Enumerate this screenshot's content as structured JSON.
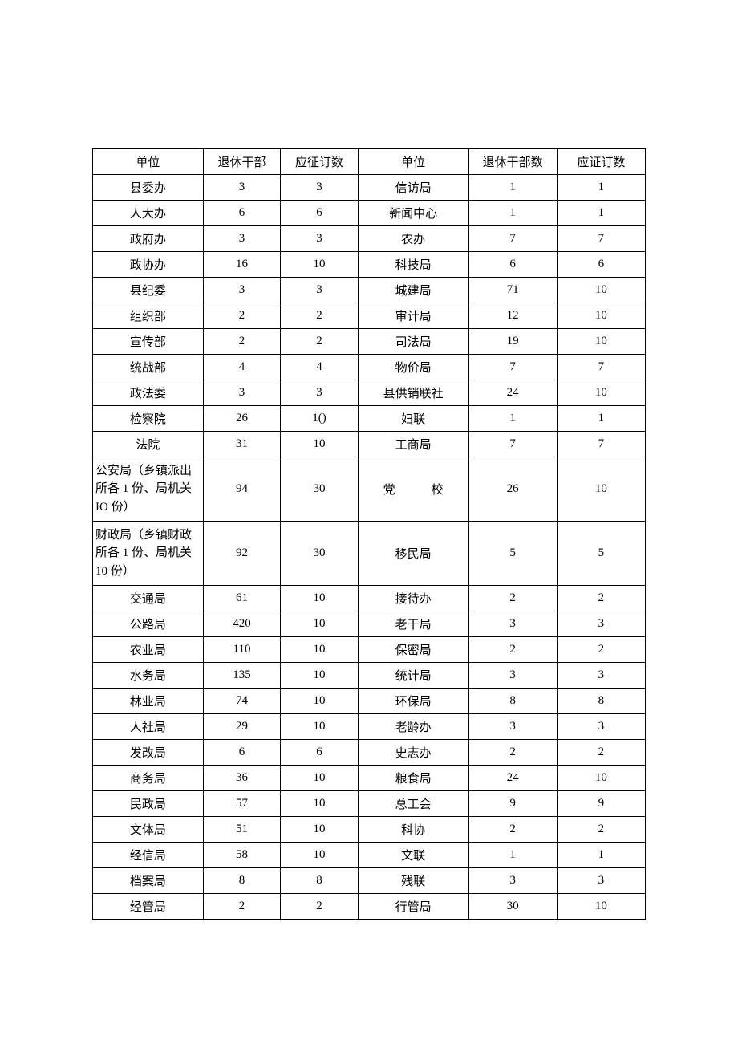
{
  "table": {
    "type": "table",
    "background_color": "#ffffff",
    "border_color": "#000000",
    "text_color": "#000000",
    "font_size": 15,
    "headers": [
      "单位",
      "退休干部",
      "应征订数",
      "单位",
      "退休干部数",
      "应证订数"
    ],
    "rows": [
      {
        "c1": "县委办",
        "c2": "3",
        "c3": "3",
        "c4": "信访局",
        "c5": "1",
        "c6": "1"
      },
      {
        "c1": "人大办",
        "c2": "6",
        "c3": "6",
        "c4": "新闻中心",
        "c5": "1",
        "c6": "1"
      },
      {
        "c1": "政府办",
        "c2": "3",
        "c3": "3",
        "c4": "农办",
        "c5": "7",
        "c6": "7"
      },
      {
        "c1": "政协办",
        "c2": "16",
        "c3": "10",
        "c4": "科技局",
        "c5": "6",
        "c6": "6"
      },
      {
        "c1": "县纪委",
        "c2": "3",
        "c3": "3",
        "c4": "城建局",
        "c5": "71",
        "c6": "10"
      },
      {
        "c1": "组织部",
        "c2": "2",
        "c3": "2",
        "c4": "审计局",
        "c5": "12",
        "c6": "10"
      },
      {
        "c1": "宣传部",
        "c2": "2",
        "c3": "2",
        "c4": "司法局",
        "c5": "19",
        "c6": "10"
      },
      {
        "c1": "统战部",
        "c2": "4",
        "c3": "4",
        "c4": "物价局",
        "c5": "7",
        "c6": "7"
      },
      {
        "c1": "政法委",
        "c2": "3",
        "c3": "3",
        "c4": "县供销联社",
        "c5": "24",
        "c6": "10"
      },
      {
        "c1": "检察院",
        "c2": "26",
        "c3": "1()",
        "c4": "妇联",
        "c5": "1",
        "c6": "1"
      },
      {
        "c1": "法院",
        "c2": "31",
        "c3": "10",
        "c4": "工商局",
        "c5": "7",
        "c6": "7"
      },
      {
        "c1": "公安局（乡镇派出所各 1 份、局机关IO 份）",
        "c2": "94",
        "c3": "30",
        "c4": "党　　　校",
        "c5": "26",
        "c6": "10",
        "tall": true,
        "multi": true
      },
      {
        "c1": "财政局（乡镇财政所各 1 份、局机关10 份）",
        "c2": "92",
        "c3": "30",
        "c4": "移民局",
        "c5": "5",
        "c6": "5",
        "tall": true,
        "multi": true
      },
      {
        "c1": "交通局",
        "c2": "61",
        "c3": "10",
        "c4": "接待办",
        "c5": "2",
        "c6": "2"
      },
      {
        "c1": "公路局",
        "c2": "420",
        "c3": "10",
        "c4": "老干局",
        "c5": "3",
        "c6": "3"
      },
      {
        "c1": "农业局",
        "c2": "110",
        "c3": "10",
        "c4": "保密局",
        "c5": "2",
        "c6": "2"
      },
      {
        "c1": "水务局",
        "c2": "135",
        "c3": "10",
        "c4": "统计局",
        "c5": "3",
        "c6": "3"
      },
      {
        "c1": "林业局",
        "c2": "74",
        "c3": "10",
        "c4": "环保局",
        "c5": "8",
        "c6": "8"
      },
      {
        "c1": "人社局",
        "c2": "29",
        "c3": "10",
        "c4": "老龄办",
        "c5": "3",
        "c6": "3"
      },
      {
        "c1": "发改局",
        "c2": "6",
        "c3": "6",
        "c4": "史志办",
        "c5": "2",
        "c6": "2"
      },
      {
        "c1": "商务局",
        "c2": "36",
        "c3": "10",
        "c4": "粮食局",
        "c5": "24",
        "c6": "10"
      },
      {
        "c1": "民政局",
        "c2": "57",
        "c3": "10",
        "c4": "总工会",
        "c5": "9",
        "c6": "9"
      },
      {
        "c1": "文体局",
        "c2": "51",
        "c3": "10",
        "c4": "科协",
        "c5": "2",
        "c6": "2"
      },
      {
        "c1": "经信局",
        "c2": "58",
        "c3": "10",
        "c4": "文联",
        "c5": "1",
        "c6": "1"
      },
      {
        "c1": "档案局",
        "c2": "8",
        "c3": "8",
        "c4": "残联",
        "c5": "3",
        "c6": "3"
      },
      {
        "c1": "经管局",
        "c2": "2",
        "c3": "2",
        "c4": "行管局",
        "c5": "30",
        "c6": "10"
      }
    ]
  }
}
